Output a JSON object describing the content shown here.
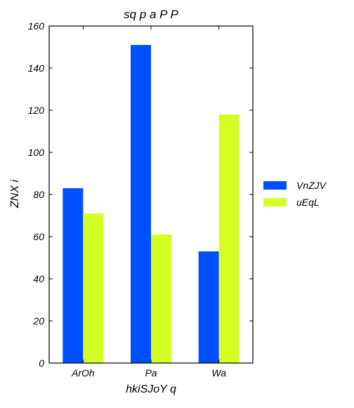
{
  "chart_data": {
    "type": "bar",
    "title": "sq p a P P",
    "xlabel": "hkiSJoY  q",
    "ylabel": "ZNX i",
    "categories": [
      "ArOh",
      "Pa",
      "Wa"
    ],
    "series": [
      {
        "name": "VnZJV",
        "values": [
          83,
          151,
          53
        ],
        "color": "#0050ff"
      },
      {
        "name": "uEqL",
        "values": [
          71,
          61,
          118
        ],
        "color": "#d4ff24"
      }
    ],
    "ylim": [
      0,
      160
    ],
    "yticks": [
      0,
      20,
      40,
      60,
      80,
      100,
      120,
      140,
      160
    ],
    "grid": false,
    "legend_position": "right"
  }
}
